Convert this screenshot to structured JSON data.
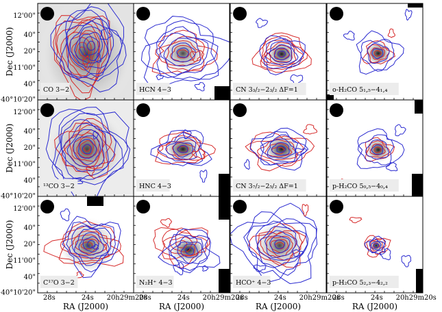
{
  "chart_data": {
    "type": "contour-map-grid",
    "rows": 3,
    "cols": 4,
    "xlabel": "RA (J2000)",
    "ylabel": "Dec (J2000)",
    "x_ticks": [
      "28s",
      "24s",
      "20h29m20s"
    ],
    "y_ticks": [
      "12'00\"",
      "40\"",
      "20\"",
      "11'00\"",
      "40\"",
      "+40°10'20\""
    ],
    "contour_colors": {
      "red": "#d62a2a",
      "blue": "#2a2ad0"
    },
    "panels": [
      {
        "row": 0,
        "col": 0,
        "label": "CO 3−2",
        "type": "co"
      },
      {
        "row": 0,
        "col": 1,
        "label": "HCN 4−3",
        "type": "hcn"
      },
      {
        "row": 0,
        "col": 2,
        "label": "CN 3₃/₂−2₃/₂ ΔF=1",
        "type": "cn"
      },
      {
        "row": 0,
        "col": 3,
        "label": "o-H₂CO 5₁,₅−4₁,₄",
        "type": "compact"
      },
      {
        "row": 1,
        "col": 0,
        "label": "¹³CO 3−2",
        "type": "13co"
      },
      {
        "row": 1,
        "col": 1,
        "label": "HNC 4−3",
        "type": "hnc"
      },
      {
        "row": 1,
        "col": 2,
        "label": "CN 3₇/₂−2₅/₂ ΔF=1",
        "type": "cn2"
      },
      {
        "row": 1,
        "col": 3,
        "label": "p-H₂CO 5₀,₅−4₀,₄",
        "type": "compact"
      },
      {
        "row": 2,
        "col": 0,
        "label": "C¹⁷O 3−2",
        "type": "c17o"
      },
      {
        "row": 2,
        "col": 1,
        "label": "N₂H⁺ 4−3",
        "type": "n2h"
      },
      {
        "row": 2,
        "col": 2,
        "label": "HCO⁺ 4−3",
        "type": "hco"
      },
      {
        "row": 2,
        "col": 3,
        "label": "p-H₂CO 5₂,₃−4₂,₂",
        "type": "weak"
      }
    ]
  }
}
